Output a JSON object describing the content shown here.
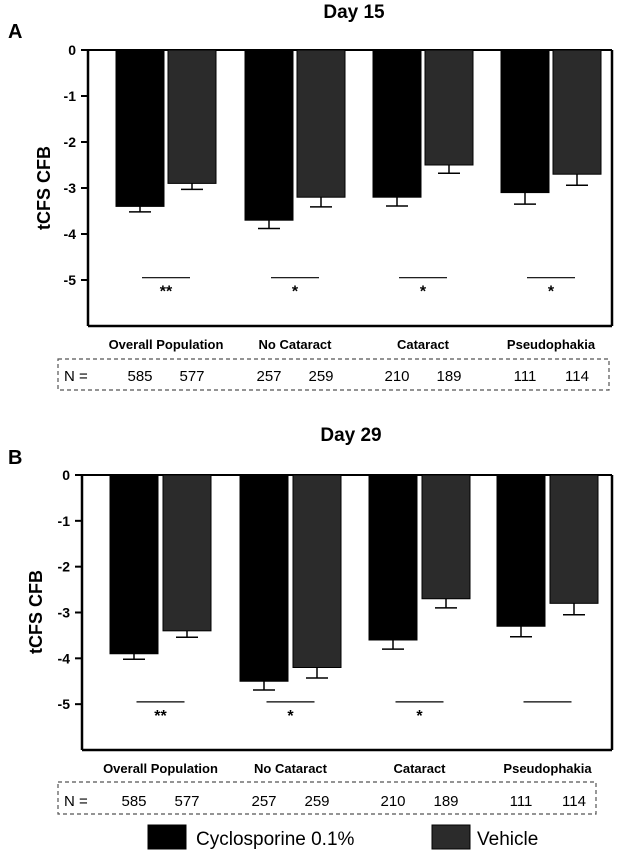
{
  "chart_data": [
    {
      "type": "bar",
      "panel": "A",
      "title": "Day 15",
      "ylabel": "tCFS CFB",
      "xlabel": "",
      "ylim": [
        0,
        -6
      ],
      "yticks": [
        0,
        -1,
        -2,
        -3,
        -4,
        -5
      ],
      "categories": [
        "Overall Population",
        "No Cataract",
        "Cataract",
        "Pseudophakia"
      ],
      "series": [
        {
          "name": "Cyclosporine 0.1%",
          "color": "#000000",
          "values": [
            -3.4,
            -3.7,
            -3.2,
            -3.1
          ],
          "errors": [
            0.12,
            0.18,
            0.19,
            0.25
          ],
          "n": [
            "585",
            "257",
            "210",
            "111"
          ]
        },
        {
          "name": "Vehicle",
          "color": "#2b2b2b",
          "values": [
            -2.9,
            -3.2,
            -2.5,
            -2.7
          ],
          "errors": [
            0.13,
            0.21,
            0.18,
            0.24
          ],
          "n": [
            "577",
            "259",
            "189",
            "114"
          ]
        }
      ],
      "significance": [
        "**",
        "*",
        "*",
        "*"
      ],
      "n_label": "N ="
    },
    {
      "type": "bar",
      "panel": "B",
      "title": "Day 29",
      "ylabel": "tCFS CFB",
      "xlabel": "",
      "ylim": [
        0,
        -6
      ],
      "yticks": [
        0,
        -1,
        -2,
        -3,
        -4,
        -5
      ],
      "categories": [
        "Overall Population",
        "No Cataract",
        "Cataract",
        "Pseudophakia"
      ],
      "series": [
        {
          "name": "Cyclosporine 0.1%",
          "color": "#000000",
          "values": [
            -3.9,
            -4.5,
            -3.6,
            -3.3
          ],
          "errors": [
            0.12,
            0.19,
            0.2,
            0.23
          ],
          "n": [
            "585",
            "257",
            "210",
            "111"
          ]
        },
        {
          "name": "Vehicle",
          "color": "#2b2b2b",
          "values": [
            -3.4,
            -4.2,
            -2.7,
            -2.8
          ],
          "errors": [
            0.14,
            0.23,
            0.2,
            0.25
          ],
          "n": [
            "577",
            "259",
            "189",
            "114"
          ]
        }
      ],
      "significance": [
        "**",
        "*",
        "*",
        ""
      ],
      "n_label": "N ="
    }
  ],
  "legend": [
    {
      "label": "Cyclosporine 0.1%",
      "color": "#000000"
    },
    {
      "label": "Vehicle",
      "color": "#2b2b2b"
    }
  ]
}
